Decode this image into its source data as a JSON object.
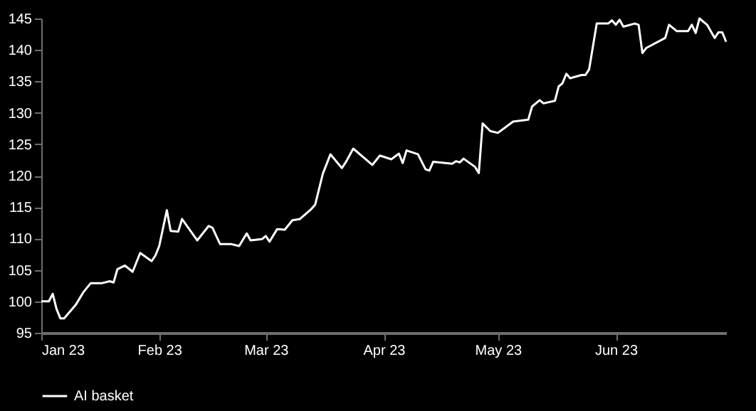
{
  "chart_data": {
    "type": "line",
    "x": [
      "2023-01-01",
      "2023-01-03",
      "2023-01-04",
      "2023-01-05",
      "2023-01-06",
      "2023-01-07",
      "2023-01-10",
      "2023-01-12",
      "2023-01-14",
      "2023-01-17",
      "2023-01-19",
      "2023-01-20",
      "2023-01-21",
      "2023-01-23",
      "2023-01-25",
      "2023-01-27",
      "2023-01-30",
      "2023-01-31",
      "2023-02-01",
      "2023-02-03",
      "2023-02-04",
      "2023-02-06",
      "2023-02-07",
      "2023-02-09",
      "2023-02-11",
      "2023-02-14",
      "2023-02-15",
      "2023-02-17",
      "2023-02-20",
      "2023-02-22",
      "2023-02-24",
      "2023-02-25",
      "2023-02-28",
      "2023-03-01",
      "2023-03-02",
      "2023-03-04",
      "2023-03-06",
      "2023-03-08",
      "2023-03-10",
      "2023-03-13",
      "2023-03-14",
      "2023-03-16",
      "2023-03-18",
      "2023-03-21",
      "2023-03-22",
      "2023-03-24",
      "2023-03-29",
      "2023-03-31",
      "2023-04-03",
      "2023-04-05",
      "2023-04-06",
      "2023-04-07",
      "2023-04-10",
      "2023-04-12",
      "2023-04-13",
      "2023-04-14",
      "2023-04-19",
      "2023-04-20",
      "2023-04-21",
      "2023-04-22",
      "2023-04-25",
      "2023-04-26",
      "2023-04-27",
      "2023-04-29",
      "2023-05-01",
      "2023-05-03",
      "2023-05-05",
      "2023-05-09",
      "2023-05-10",
      "2023-05-12",
      "2023-05-13",
      "2023-05-16",
      "2023-05-17",
      "2023-05-18",
      "2023-05-19",
      "2023-05-20",
      "2023-05-23",
      "2023-05-24",
      "2023-05-25",
      "2023-05-27",
      "2023-05-30",
      "2023-05-31",
      "2023-06-01",
      "2023-06-02",
      "2023-06-03",
      "2023-06-06",
      "2023-06-07",
      "2023-06-08",
      "2023-06-09",
      "2023-06-14",
      "2023-06-15",
      "2023-06-17",
      "2023-06-20",
      "2023-06-21",
      "2023-06-22",
      "2023-06-23",
      "2023-06-25",
      "2023-06-27",
      "2023-06-28",
      "2023-06-29",
      "2023-06-30"
    ],
    "series": [
      {
        "name": "AI basket",
        "color": "#ffffff",
        "values": [
          100.0,
          100.0,
          101.2,
          98.8,
          97.3,
          97.3,
          99.4,
          101.4,
          102.9,
          102.9,
          103.2,
          103.0,
          105.1,
          105.7,
          104.7,
          107.7,
          106.4,
          107.3,
          108.8,
          114.5,
          111.2,
          111.1,
          113.1,
          111.4,
          109.7,
          112.0,
          111.7,
          109.1,
          109.1,
          108.8,
          110.8,
          109.7,
          109.9,
          110.4,
          109.5,
          111.5,
          111.4,
          112.9,
          113.1,
          114.7,
          115.4,
          120.3,
          123.4,
          121.2,
          122.1,
          124.3,
          121.7,
          123.2,
          122.6,
          123.5,
          122.0,
          124.0,
          123.4,
          121.0,
          120.8,
          122.2,
          121.9,
          122.3,
          122.1,
          122.7,
          121.4,
          120.4,
          128.3,
          127.1,
          126.8,
          127.7,
          128.6,
          128.9,
          131.0,
          132.0,
          131.5,
          131.9,
          134.2,
          134.7,
          136.2,
          135.5,
          136.0,
          136.0,
          136.9,
          144.2,
          144.2,
          144.7,
          144.0,
          144.8,
          143.7,
          144.2,
          144.0,
          139.5,
          140.3,
          141.9,
          144.0,
          143.0,
          143.0,
          144.0,
          142.7,
          145.0,
          144.0,
          141.9,
          142.8,
          142.8,
          141.3
        ]
      }
    ],
    "xlim": [
      "2023-01-01",
      "2023-06-30"
    ],
    "xticks": [
      {
        "value": "2023-01-01",
        "label": "Jan 23"
      },
      {
        "value": "2023-02-01",
        "label": "Feb 23"
      },
      {
        "value": "2023-03-01",
        "label": "Mar 23"
      },
      {
        "value": "2023-04-01",
        "label": "Apr 23"
      },
      {
        "value": "2023-05-01",
        "label": "May 23"
      },
      {
        "value": "2023-06-01",
        "label": "Jun 23"
      }
    ],
    "ylim": [
      95,
      145
    ],
    "yticks": [
      95,
      100,
      105,
      110,
      115,
      120,
      125,
      130,
      135,
      140,
      145
    ],
    "grid": false,
    "legend": "bottom",
    "marker": "none",
    "line_style": "solid"
  }
}
